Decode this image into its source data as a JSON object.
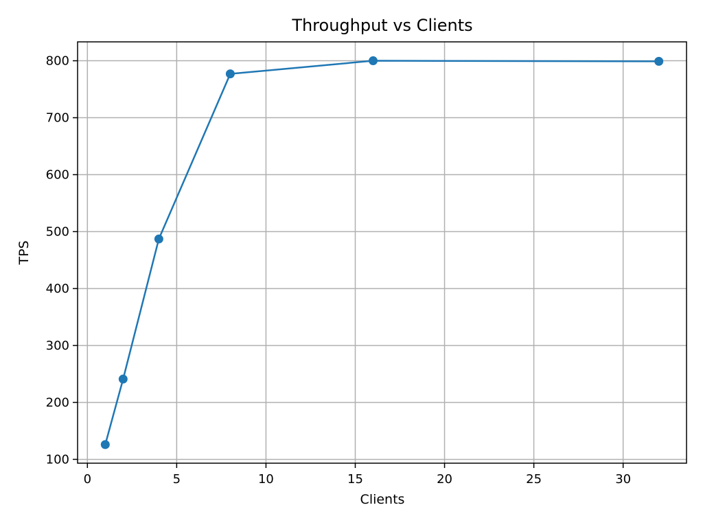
{
  "chart_data": {
    "type": "line",
    "title": "Throughput vs Clients",
    "xlabel": "Clients",
    "ylabel": "TPS",
    "x": [
      1,
      2,
      4,
      8,
      16,
      32
    ],
    "series": [
      {
        "values": [
          126,
          241,
          487,
          777,
          800,
          799
        ],
        "color": "#1f77b4",
        "marker": "circle"
      }
    ],
    "xlim": [
      -0.55,
      33.55
    ],
    "ylim": [
      93.3,
      833.2
    ],
    "xticks": [
      0,
      5,
      10,
      15,
      20,
      25,
      30
    ],
    "yticks": [
      100,
      200,
      300,
      400,
      500,
      600,
      700,
      800
    ],
    "grid": true,
    "legend": "none"
  }
}
